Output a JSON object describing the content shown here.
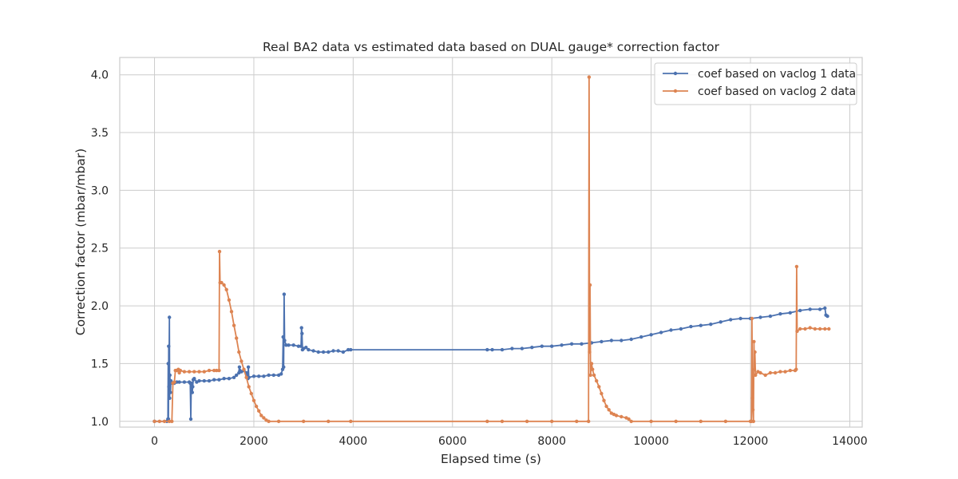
{
  "chart_data": {
    "type": "line",
    "title": "Real BA2 data vs estimated data based on DUAL gauge* correction factor",
    "xlabel": "Elapsed time (s)",
    "ylabel": "Correction factor (mbar/mbar)",
    "xlim": [
      -700,
      14250
    ],
    "ylim": [
      0.95,
      4.15
    ],
    "xticks": [
      0,
      2000,
      4000,
      6000,
      8000,
      10000,
      12000,
      14000
    ],
    "yticks": [
      1.0,
      1.5,
      2.0,
      2.5,
      3.0,
      3.5,
      4.0
    ],
    "xtick_labels": [
      "0",
      "2000",
      "4000",
      "6000",
      "8000",
      "10000",
      "12000",
      "14000"
    ],
    "ytick_labels": [
      "1.0",
      "1.5",
      "2.0",
      "2.5",
      "3.0",
      "3.5",
      "4.0"
    ],
    "grid": true,
    "legend_position": "top-right",
    "colors": {
      "series1": "#4c72b0",
      "series2": "#dd8452",
      "grid": "#cccccc",
      "frame": "#cccccc"
    },
    "series": [
      {
        "name": "coef based on vaclog 1 data",
        "color": "#4c72b0",
        "points": [
          [
            0,
            1.0
          ],
          [
            250,
            1.0
          ],
          [
            270,
            1.02
          ],
          [
            275,
            1.5
          ],
          [
            280,
            1.02
          ],
          [
            285,
            1.65
          ],
          [
            290,
            1.3
          ],
          [
            300,
            1.9
          ],
          [
            305,
            1.2
          ],
          [
            310,
            1.4
          ],
          [
            320,
            1.25
          ],
          [
            330,
            1.35
          ],
          [
            360,
            1.33
          ],
          [
            400,
            1.33
          ],
          [
            450,
            1.34
          ],
          [
            500,
            1.34
          ],
          [
            600,
            1.34
          ],
          [
            700,
            1.34
          ],
          [
            720,
            1.33
          ],
          [
            730,
            1.02
          ],
          [
            740,
            1.33
          ],
          [
            760,
            1.25
          ],
          [
            770,
            1.3
          ],
          [
            780,
            1.36
          ],
          [
            800,
            1.37
          ],
          [
            850,
            1.34
          ],
          [
            900,
            1.35
          ],
          [
            1000,
            1.35
          ],
          [
            1100,
            1.35
          ],
          [
            1200,
            1.36
          ],
          [
            1300,
            1.36
          ],
          [
            1400,
            1.37
          ],
          [
            1500,
            1.37
          ],
          [
            1600,
            1.38
          ],
          [
            1650,
            1.4
          ],
          [
            1700,
            1.42
          ],
          [
            1710,
            1.47
          ],
          [
            1720,
            1.44
          ],
          [
            1750,
            1.43
          ],
          [
            1800,
            1.44
          ],
          [
            1850,
            1.42
          ],
          [
            1880,
            1.37
          ],
          [
            1890,
            1.47
          ],
          [
            1900,
            1.38
          ],
          [
            2000,
            1.39
          ],
          [
            2100,
            1.39
          ],
          [
            2200,
            1.39
          ],
          [
            2300,
            1.4
          ],
          [
            2400,
            1.4
          ],
          [
            2500,
            1.4
          ],
          [
            2550,
            1.41
          ],
          [
            2580,
            1.45
          ],
          [
            2590,
            1.73
          ],
          [
            2600,
            1.47
          ],
          [
            2610,
            2.1
          ],
          [
            2620,
            1.7
          ],
          [
            2650,
            1.66
          ],
          [
            2700,
            1.66
          ],
          [
            2800,
            1.66
          ],
          [
            2900,
            1.65
          ],
          [
            2950,
            1.65
          ],
          [
            2960,
            1.81
          ],
          [
            2970,
            1.76
          ],
          [
            2980,
            1.62
          ],
          [
            3000,
            1.63
          ],
          [
            3050,
            1.64
          ],
          [
            3100,
            1.62
          ],
          [
            3200,
            1.61
          ],
          [
            3300,
            1.6
          ],
          [
            3400,
            1.6
          ],
          [
            3500,
            1.6
          ],
          [
            3600,
            1.61
          ],
          [
            3700,
            1.61
          ],
          [
            3800,
            1.6
          ],
          [
            3900,
            1.62
          ],
          [
            3950,
            1.62
          ],
          [
            6700,
            1.62
          ],
          [
            6800,
            1.62
          ],
          [
            7000,
            1.62
          ],
          [
            7200,
            1.63
          ],
          [
            7400,
            1.63
          ],
          [
            7600,
            1.64
          ],
          [
            7800,
            1.65
          ],
          [
            8000,
            1.65
          ],
          [
            8200,
            1.66
          ],
          [
            8400,
            1.67
          ],
          [
            8600,
            1.67
          ],
          [
            8800,
            1.68
          ],
          [
            9000,
            1.69
          ],
          [
            9200,
            1.7
          ],
          [
            9400,
            1.7
          ],
          [
            9600,
            1.71
          ],
          [
            9800,
            1.73
          ],
          [
            10000,
            1.75
          ],
          [
            10200,
            1.77
          ],
          [
            10400,
            1.79
          ],
          [
            10600,
            1.8
          ],
          [
            10800,
            1.82
          ],
          [
            11000,
            1.83
          ],
          [
            11200,
            1.84
          ],
          [
            11400,
            1.86
          ],
          [
            11600,
            1.88
          ],
          [
            11800,
            1.89
          ],
          [
            12000,
            1.89
          ],
          [
            12200,
            1.9
          ],
          [
            12400,
            1.91
          ],
          [
            12600,
            1.93
          ],
          [
            12800,
            1.94
          ],
          [
            13000,
            1.96
          ],
          [
            13200,
            1.97
          ],
          [
            13400,
            1.97
          ],
          [
            13500,
            1.98
          ],
          [
            13520,
            1.92
          ],
          [
            13550,
            1.91
          ]
        ]
      },
      {
        "name": "coef based on vaclog 2 data",
        "color": "#dd8452",
        "points": [
          [
            0,
            1.0
          ],
          [
            100,
            1.0
          ],
          [
            200,
            1.0
          ],
          [
            300,
            1.0
          ],
          [
            350,
            1.0
          ],
          [
            370,
            1.33
          ],
          [
            400,
            1.34
          ],
          [
            420,
            1.44
          ],
          [
            450,
            1.44
          ],
          [
            480,
            1.45
          ],
          [
            500,
            1.42
          ],
          [
            520,
            1.44
          ],
          [
            600,
            1.43
          ],
          [
            700,
            1.43
          ],
          [
            800,
            1.43
          ],
          [
            900,
            1.43
          ],
          [
            1000,
            1.43
          ],
          [
            1100,
            1.44
          ],
          [
            1200,
            1.44
          ],
          [
            1250,
            1.44
          ],
          [
            1300,
            1.44
          ],
          [
            1310,
            2.47
          ],
          [
            1320,
            2.2
          ],
          [
            1350,
            2.2
          ],
          [
            1400,
            2.18
          ],
          [
            1450,
            2.14
          ],
          [
            1500,
            2.05
          ],
          [
            1550,
            1.95
          ],
          [
            1600,
            1.83
          ],
          [
            1650,
            1.72
          ],
          [
            1700,
            1.6
          ],
          [
            1750,
            1.52
          ],
          [
            1800,
            1.45
          ],
          [
            1850,
            1.38
          ],
          [
            1900,
            1.3
          ],
          [
            1950,
            1.24
          ],
          [
            2000,
            1.18
          ],
          [
            2050,
            1.13
          ],
          [
            2100,
            1.09
          ],
          [
            2150,
            1.05
          ],
          [
            2200,
            1.03
          ],
          [
            2250,
            1.01
          ],
          [
            2300,
            1.0
          ],
          [
            2500,
            1.0
          ],
          [
            3000,
            1.0
          ],
          [
            3500,
            1.0
          ],
          [
            3950,
            1.0
          ],
          [
            6700,
            1.0
          ],
          [
            7000,
            1.0
          ],
          [
            7500,
            1.0
          ],
          [
            8000,
            1.0
          ],
          [
            8500,
            1.0
          ],
          [
            8740,
            1.0
          ],
          [
            8750,
            3.98
          ],
          [
            8760,
            1.6
          ],
          [
            8770,
            2.18
          ],
          [
            8780,
            1.4
          ],
          [
            8800,
            1.5
          ],
          [
            8820,
            1.45
          ],
          [
            8850,
            1.4
          ],
          [
            8900,
            1.35
          ],
          [
            8950,
            1.3
          ],
          [
            9000,
            1.24
          ],
          [
            9050,
            1.18
          ],
          [
            9100,
            1.13
          ],
          [
            9150,
            1.1
          ],
          [
            9200,
            1.07
          ],
          [
            9250,
            1.06
          ],
          [
            9300,
            1.05
          ],
          [
            9400,
            1.04
          ],
          [
            9500,
            1.03
          ],
          [
            9550,
            1.02
          ],
          [
            9600,
            1.0
          ],
          [
            10000,
            1.0
          ],
          [
            10500,
            1.0
          ],
          [
            11000,
            1.0
          ],
          [
            11500,
            1.0
          ],
          [
            12000,
            1.0
          ],
          [
            12020,
            1.0
          ],
          [
            12030,
            1.89
          ],
          [
            12040,
            1.2
          ],
          [
            12050,
            1.1
          ],
          [
            12060,
            1.0
          ],
          [
            12070,
            1.69
          ],
          [
            12080,
            1.45
          ],
          [
            12090,
            1.6
          ],
          [
            12100,
            1.4
          ],
          [
            12150,
            1.43
          ],
          [
            12200,
            1.42
          ],
          [
            12300,
            1.4
          ],
          [
            12400,
            1.42
          ],
          [
            12500,
            1.42
          ],
          [
            12600,
            1.43
          ],
          [
            12700,
            1.43
          ],
          [
            12800,
            1.44
          ],
          [
            12900,
            1.44
          ],
          [
            12920,
            1.45
          ],
          [
            12930,
            2.34
          ],
          [
            12940,
            1.78
          ],
          [
            13000,
            1.8
          ],
          [
            13100,
            1.8
          ],
          [
            13200,
            1.81
          ],
          [
            13300,
            1.8
          ],
          [
            13400,
            1.8
          ],
          [
            13500,
            1.8
          ],
          [
            13580,
            1.8
          ]
        ]
      }
    ]
  }
}
